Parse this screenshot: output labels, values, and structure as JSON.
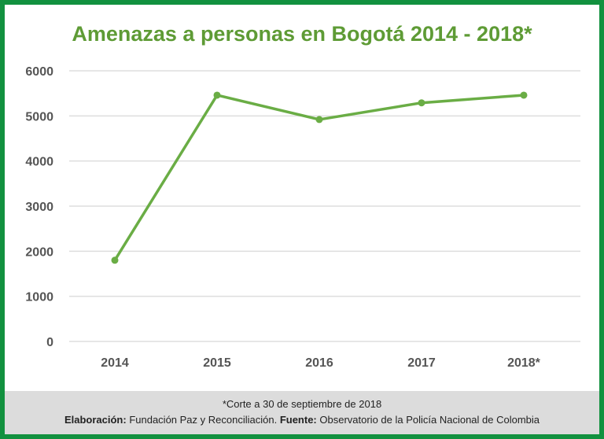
{
  "chart_data": {
    "type": "line",
    "title": "Amenazas a personas en Bogotá 2014 - 2018*",
    "categories": [
      "2014",
      "2015",
      "2016",
      "2017",
      "2018*"
    ],
    "series": [
      {
        "name": "Amenazas",
        "values": [
          1800,
          5460,
          4920,
          5290,
          5460
        ]
      }
    ],
    "xlabel": "",
    "ylabel": "",
    "ylim": [
      0,
      6000
    ],
    "yticks": [
      "0",
      "1000",
      "2000",
      "3000",
      "4000",
      "5000",
      "6000"
    ],
    "grid": true,
    "color": "#6aad45"
  },
  "footer": {
    "note": "*Corte a 30 de septiembre de 2018",
    "elab_label": "Elaboración:",
    "elab_value": " Fundación Paz y Reconciliación. ",
    "source_label": "Fuente:",
    "source_value": " Observatorio de la Policía Nacional de Colombia"
  }
}
